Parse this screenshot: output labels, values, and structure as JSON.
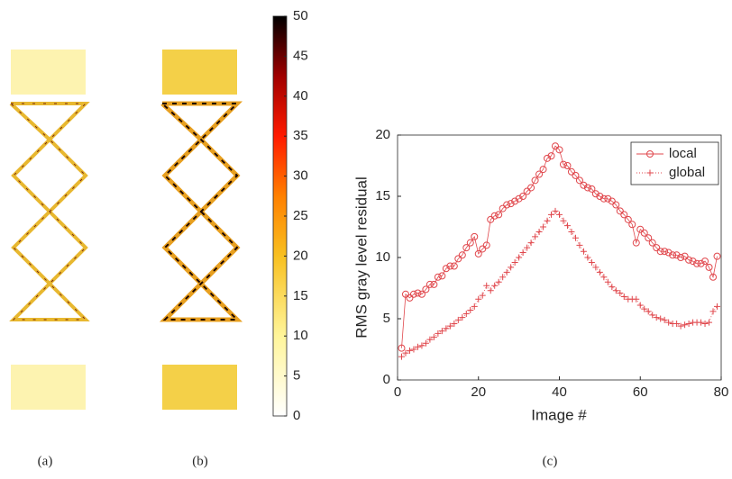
{
  "panel_labels": [
    "(a)",
    "(b)",
    "(c)"
  ],
  "chart_data": [
    {
      "type": "line",
      "xlabel": "Image #",
      "ylabel": "RMS gray level residual",
      "xlim": [
        0,
        80
      ],
      "xticks": [
        0,
        20,
        40,
        60,
        80
      ],
      "ylim": [
        0,
        20
      ],
      "yticks": [
        0,
        5,
        10,
        15,
        20
      ],
      "legend": "upper-right",
      "x": [
        1,
        2,
        3,
        4,
        5,
        6,
        7,
        8,
        9,
        10,
        11,
        12,
        13,
        14,
        15,
        16,
        17,
        18,
        19,
        20,
        21,
        22,
        23,
        24,
        25,
        26,
        27,
        28,
        29,
        30,
        31,
        32,
        33,
        34,
        35,
        36,
        37,
        38,
        39,
        40,
        41,
        42,
        43,
        44,
        45,
        46,
        47,
        48,
        49,
        50,
        51,
        52,
        53,
        54,
        55,
        56,
        57,
        58,
        59,
        60,
        61,
        62,
        63,
        64,
        65,
        66,
        67,
        68,
        69,
        70,
        71,
        72,
        73,
        74,
        75,
        76,
        77,
        78,
        79
      ],
      "series": [
        {
          "name": "local",
          "color": "#e0474c",
          "marker": "circle",
          "linestyle": "solid",
          "values": [
            2.6,
            7.0,
            6.7,
            7.0,
            7.1,
            7.0,
            7.4,
            7.8,
            7.8,
            8.4,
            8.5,
            9.1,
            9.3,
            9.3,
            9.9,
            10.2,
            10.8,
            11.2,
            11.7,
            10.3,
            10.7,
            11.0,
            13.1,
            13.4,
            13.5,
            14.0,
            14.3,
            14.4,
            14.6,
            14.8,
            15.0,
            15.4,
            15.7,
            16.3,
            16.8,
            17.2,
            18.1,
            18.3,
            19.1,
            18.8,
            17.6,
            17.5,
            17.0,
            16.7,
            16.3,
            15.9,
            15.7,
            15.6,
            15.2,
            15.0,
            14.8,
            14.8,
            14.6,
            14.3,
            13.8,
            13.5,
            13.1,
            12.7,
            11.2,
            12.3,
            12.0,
            11.6,
            11.2,
            10.8,
            10.5,
            10.5,
            10.4,
            10.2,
            10.2,
            10.0,
            10.1,
            9.8,
            9.7,
            9.5,
            9.5,
            9.7,
            9.2,
            8.4,
            10.1
          ]
        },
        {
          "name": "global",
          "color": "#e0474c",
          "marker": "plus",
          "linestyle": "dotted",
          "values": [
            1.9,
            2.2,
            2.4,
            2.5,
            2.7,
            2.8,
            3.0,
            3.3,
            3.5,
            3.8,
            4.0,
            4.2,
            4.4,
            4.6,
            4.9,
            5.1,
            5.4,
            5.7,
            6.0,
            6.6,
            6.9,
            7.7,
            7.3,
            7.7,
            8.0,
            8.4,
            8.8,
            9.2,
            9.6,
            10.0,
            10.4,
            10.8,
            11.2,
            11.7,
            12.1,
            12.5,
            13.0,
            13.5,
            13.8,
            13.5,
            13.0,
            12.6,
            12.1,
            11.6,
            11.0,
            10.5,
            10.0,
            9.6,
            9.2,
            8.8,
            8.4,
            8.0,
            7.6,
            7.3,
            7.1,
            6.8,
            6.6,
            6.6,
            6.6,
            6.1,
            5.8,
            5.6,
            5.3,
            5.1,
            5.0,
            4.9,
            4.7,
            4.6,
            4.6,
            4.4,
            4.5,
            4.6,
            4.7,
            4.7,
            4.7,
            4.6,
            4.7,
            5.6,
            6.0
          ]
        }
      ]
    },
    {
      "type": "colorbar",
      "ylim": [
        0,
        50
      ],
      "yticks": [
        0,
        5,
        10,
        15,
        20,
        25,
        30,
        35,
        40,
        45,
        50
      ]
    }
  ]
}
